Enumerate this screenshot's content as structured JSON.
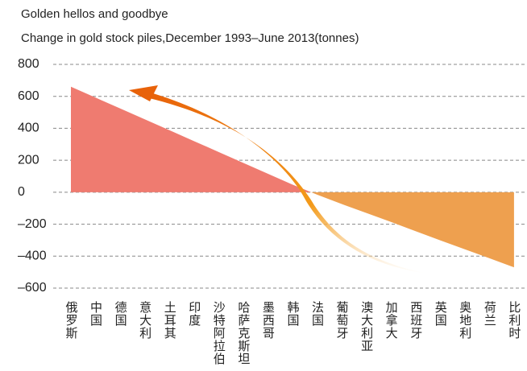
{
  "chart_data": {
    "type": "area",
    "title": "Golden hellos and goodbye",
    "subtitle": "Change in gold stock piles,December 1993–June 2013(tonnes)",
    "categories": [
      "俄罗斯",
      "中国",
      "德国",
      "意大利",
      "土耳其",
      "印度",
      "沙特阿拉伯",
      "哈萨克斯坦",
      "墨西哥",
      "韩国",
      "法国",
      "葡萄牙",
      "澳大利亚",
      "加拿大",
      "西班牙",
      "英国",
      "奥地利",
      "荷兰",
      "比利时"
    ],
    "values": [
      660,
      592,
      524,
      456,
      388,
      320,
      252,
      184,
      116,
      48,
      -15,
      -74,
      -130,
      -186,
      -244,
      -301,
      -357,
      -413,
      -470
    ],
    "colors": {
      "positive": "#ef7b70",
      "negative": "#eea04f"
    },
    "ylim": [
      -600,
      800
    ],
    "yticks": [
      {
        "value": 800,
        "label": "800"
      },
      {
        "value": 600,
        "label": "600"
      },
      {
        "value": 400,
        "label": "400"
      },
      {
        "value": 200,
        "label": "200"
      },
      0,
      {
        "value": -200,
        "label": "–200"
      },
      {
        "value": -400,
        "label": "–400"
      },
      {
        "value": -600,
        "label": "–600"
      }
    ],
    "grid": true
  }
}
